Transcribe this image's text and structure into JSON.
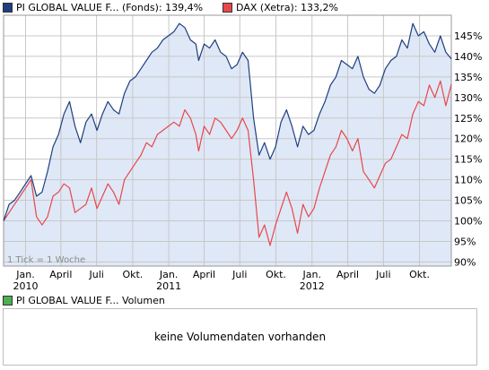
{
  "legend": [
    {
      "label": "PI GLOBAL VALUE F... (Fonds): 139,4%",
      "color": "#1f3f7f"
    },
    {
      "label": "DAX (Xetra): 133,2%",
      "color": "#e8474a"
    }
  ],
  "volume_legend": {
    "label": "PI GLOBAL VALUE F... Volumen",
    "color": "#4caf50"
  },
  "volume_message": "keine Volumendaten vorhanden",
  "tick_note": "1 Tick = 1 Woche",
  "colors": {
    "fund": "#1f3f7f",
    "dax": "#e8474a",
    "area": "#dfe8f7",
    "grid": "#c8c8c8"
  },
  "chart_data": {
    "type": "line",
    "x_start": "2009-11-06",
    "x_end": "2012-12-21",
    "ylim": [
      89,
      150
    ],
    "y_ticks": [
      {
        "v": 90,
        "label": "90%"
      },
      {
        "v": 95,
        "label": "95%"
      },
      {
        "v": 100,
        "label": "100%"
      },
      {
        "v": 105,
        "label": "105%"
      },
      {
        "v": 110,
        "label": "110%"
      },
      {
        "v": 115,
        "label": "115%"
      },
      {
        "v": 120,
        "label": "120%"
      },
      {
        "v": 125,
        "label": "125%"
      },
      {
        "v": 130,
        "label": "130%"
      },
      {
        "v": 135,
        "label": "135%"
      },
      {
        "v": 140,
        "label": "140%"
      },
      {
        "v": 145,
        "label": "145%"
      }
    ],
    "x_ticks": [
      {
        "date": "2010-01-01",
        "label": "Jan.",
        "year": "2010"
      },
      {
        "date": "2010-04-01",
        "label": "April"
      },
      {
        "date": "2010-07-01",
        "label": "Juli"
      },
      {
        "date": "2010-10-01",
        "label": "Okt."
      },
      {
        "date": "2011-01-01",
        "label": "Jan.",
        "year": "2011"
      },
      {
        "date": "2011-04-01",
        "label": "April"
      },
      {
        "date": "2011-07-01",
        "label": "Juli"
      },
      {
        "date": "2011-10-01",
        "label": "Okt."
      },
      {
        "date": "2012-01-01",
        "label": "Jan.",
        "year": "2012"
      },
      {
        "date": "2012-04-01",
        "label": "April"
      },
      {
        "date": "2012-07-01",
        "label": "Juli"
      },
      {
        "date": "2012-10-01",
        "label": "Okt."
      }
    ],
    "series": [
      {
        "name": "PI GLOBAL VALUE F... (Fonds)",
        "points": [
          [
            "2009-11-06",
            100
          ],
          [
            "2009-11-20",
            104
          ],
          [
            "2009-12-04",
            105
          ],
          [
            "2009-12-18",
            107
          ],
          [
            "2010-01-01",
            109
          ],
          [
            "2010-01-15",
            111
          ],
          [
            "2010-01-29",
            106
          ],
          [
            "2010-02-12",
            107
          ],
          [
            "2010-02-26",
            112
          ],
          [
            "2010-03-12",
            118
          ],
          [
            "2010-03-26",
            121
          ],
          [
            "2010-04-09",
            126
          ],
          [
            "2010-04-23",
            129
          ],
          [
            "2010-05-07",
            123
          ],
          [
            "2010-05-21",
            119
          ],
          [
            "2010-06-04",
            124
          ],
          [
            "2010-06-18",
            126
          ],
          [
            "2010-07-02",
            122
          ],
          [
            "2010-07-16",
            126
          ],
          [
            "2010-07-30",
            129
          ],
          [
            "2010-08-13",
            127
          ],
          [
            "2010-08-27",
            126
          ],
          [
            "2010-09-10",
            131
          ],
          [
            "2010-09-24",
            134
          ],
          [
            "2010-10-08",
            135
          ],
          [
            "2010-10-22",
            137
          ],
          [
            "2010-11-05",
            139
          ],
          [
            "2010-11-19",
            141
          ],
          [
            "2010-12-03",
            142
          ],
          [
            "2010-12-17",
            144
          ],
          [
            "2010-12-31",
            145
          ],
          [
            "2011-01-14",
            146
          ],
          [
            "2011-01-28",
            148
          ],
          [
            "2011-02-11",
            147
          ],
          [
            "2011-02-25",
            144
          ],
          [
            "2011-03-11",
            143
          ],
          [
            "2011-03-18",
            139
          ],
          [
            "2011-04-01",
            143
          ],
          [
            "2011-04-15",
            142
          ],
          [
            "2011-04-29",
            144
          ],
          [
            "2011-05-13",
            141
          ],
          [
            "2011-05-27",
            140
          ],
          [
            "2011-06-10",
            137
          ],
          [
            "2011-06-24",
            138
          ],
          [
            "2011-07-08",
            141
          ],
          [
            "2011-07-22",
            139
          ],
          [
            "2011-08-05",
            125
          ],
          [
            "2011-08-19",
            116
          ],
          [
            "2011-09-02",
            119
          ],
          [
            "2011-09-16",
            115
          ],
          [
            "2011-09-30",
            118
          ],
          [
            "2011-10-14",
            124
          ],
          [
            "2011-10-28",
            127
          ],
          [
            "2011-11-11",
            123
          ],
          [
            "2011-11-25",
            118
          ],
          [
            "2011-12-09",
            123
          ],
          [
            "2011-12-23",
            121
          ],
          [
            "2012-01-06",
            122
          ],
          [
            "2012-01-20",
            126
          ],
          [
            "2012-02-03",
            129
          ],
          [
            "2012-02-17",
            133
          ],
          [
            "2012-03-02",
            135
          ],
          [
            "2012-03-16",
            139
          ],
          [
            "2012-03-30",
            138
          ],
          [
            "2012-04-13",
            137
          ],
          [
            "2012-04-27",
            140
          ],
          [
            "2012-05-11",
            135
          ],
          [
            "2012-05-25",
            132
          ],
          [
            "2012-06-08",
            131
          ],
          [
            "2012-06-22",
            133
          ],
          [
            "2012-07-06",
            137
          ],
          [
            "2012-07-20",
            139
          ],
          [
            "2012-08-03",
            140
          ],
          [
            "2012-08-17",
            144
          ],
          [
            "2012-08-31",
            142
          ],
          [
            "2012-09-14",
            148
          ],
          [
            "2012-09-28",
            145
          ],
          [
            "2012-10-12",
            146
          ],
          [
            "2012-10-26",
            143
          ],
          [
            "2012-11-09",
            141
          ],
          [
            "2012-11-23",
            145
          ],
          [
            "2012-12-07",
            141
          ],
          [
            "2012-12-21",
            139.4
          ]
        ]
      },
      {
        "name": "DAX (Xetra)",
        "points": [
          [
            "2009-11-06",
            100
          ],
          [
            "2009-11-20",
            102
          ],
          [
            "2009-12-04",
            104
          ],
          [
            "2009-12-18",
            106
          ],
          [
            "2010-01-01",
            108
          ],
          [
            "2010-01-15",
            110
          ],
          [
            "2010-01-29",
            101
          ],
          [
            "2010-02-12",
            99
          ],
          [
            "2010-02-26",
            101
          ],
          [
            "2010-03-12",
            106
          ],
          [
            "2010-03-26",
            107
          ],
          [
            "2010-04-09",
            109
          ],
          [
            "2010-04-23",
            108
          ],
          [
            "2010-05-07",
            102
          ],
          [
            "2010-05-21",
            103
          ],
          [
            "2010-06-04",
            104
          ],
          [
            "2010-06-18",
            108
          ],
          [
            "2010-07-02",
            103
          ],
          [
            "2010-07-16",
            106
          ],
          [
            "2010-07-30",
            109
          ],
          [
            "2010-08-13",
            107
          ],
          [
            "2010-08-27",
            104
          ],
          [
            "2010-09-10",
            110
          ],
          [
            "2010-09-24",
            112
          ],
          [
            "2010-10-08",
            114
          ],
          [
            "2010-10-22",
            116
          ],
          [
            "2010-11-05",
            119
          ],
          [
            "2010-11-19",
            118
          ],
          [
            "2010-12-03",
            121
          ],
          [
            "2010-12-17",
            122
          ],
          [
            "2010-12-31",
            123
          ],
          [
            "2011-01-14",
            124
          ],
          [
            "2011-01-28",
            123
          ],
          [
            "2011-02-11",
            127
          ],
          [
            "2011-02-25",
            125
          ],
          [
            "2011-03-11",
            121
          ],
          [
            "2011-03-18",
            117
          ],
          [
            "2011-04-01",
            123
          ],
          [
            "2011-04-15",
            121
          ],
          [
            "2011-04-29",
            125
          ],
          [
            "2011-05-13",
            124
          ],
          [
            "2011-05-27",
            122
          ],
          [
            "2011-06-10",
            120
          ],
          [
            "2011-06-24",
            122
          ],
          [
            "2011-07-08",
            125
          ],
          [
            "2011-07-22",
            122
          ],
          [
            "2011-08-05",
            110
          ],
          [
            "2011-08-19",
            96
          ],
          [
            "2011-09-02",
            99
          ],
          [
            "2011-09-16",
            94
          ],
          [
            "2011-09-30",
            99
          ],
          [
            "2011-10-14",
            103
          ],
          [
            "2011-10-28",
            107
          ],
          [
            "2011-11-11",
            103
          ],
          [
            "2011-11-25",
            97
          ],
          [
            "2011-12-09",
            104
          ],
          [
            "2011-12-23",
            101
          ],
          [
            "2012-01-06",
            103
          ],
          [
            "2012-01-20",
            108
          ],
          [
            "2012-02-03",
            112
          ],
          [
            "2012-02-17",
            116
          ],
          [
            "2012-03-02",
            118
          ],
          [
            "2012-03-16",
            122
          ],
          [
            "2012-03-30",
            120
          ],
          [
            "2012-04-13",
            117
          ],
          [
            "2012-04-27",
            120
          ],
          [
            "2012-05-11",
            112
          ],
          [
            "2012-05-25",
            110
          ],
          [
            "2012-06-08",
            108
          ],
          [
            "2012-06-22",
            111
          ],
          [
            "2012-07-06",
            114
          ],
          [
            "2012-07-20",
            115
          ],
          [
            "2012-08-03",
            118
          ],
          [
            "2012-08-17",
            121
          ],
          [
            "2012-08-31",
            120
          ],
          [
            "2012-09-14",
            126
          ],
          [
            "2012-09-28",
            129
          ],
          [
            "2012-10-12",
            128
          ],
          [
            "2012-10-26",
            133
          ],
          [
            "2012-11-09",
            130
          ],
          [
            "2012-11-23",
            134
          ],
          [
            "2012-12-07",
            128
          ],
          [
            "2012-12-21",
            133.2
          ]
        ]
      }
    ]
  }
}
